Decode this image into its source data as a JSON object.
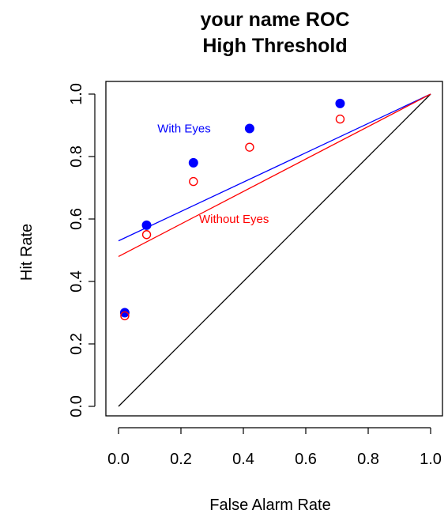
{
  "chart_data": {
    "type": "scatter",
    "title_lines": [
      "your name ROC",
      "High Threshold"
    ],
    "xlabel": "False Alarm Rate",
    "ylabel": "Hit Rate",
    "xlim": [
      0,
      1
    ],
    "ylim": [
      0,
      1
    ],
    "x_ticks": [
      "0.0",
      "0.2",
      "0.4",
      "0.6",
      "0.8",
      "1.0"
    ],
    "y_ticks": [
      "0.0",
      "0.2",
      "0.4",
      "0.6",
      "0.8",
      "1.0"
    ],
    "grid": false,
    "legend": "none",
    "series": [
      {
        "name": "With Eyes",
        "color": "#0000ff",
        "marker": "filled-circle",
        "points": [
          {
            "x": 0.02,
            "y": 0.3
          },
          {
            "x": 0.09,
            "y": 0.58
          },
          {
            "x": 0.24,
            "y": 0.78
          },
          {
            "x": 0.42,
            "y": 0.89
          },
          {
            "x": 0.71,
            "y": 0.97
          }
        ],
        "fit_line": {
          "x0": 0,
          "y0": 0.53,
          "x1": 1,
          "y1": 1
        }
      },
      {
        "name": "Without Eyes",
        "color": "#ff0000",
        "marker": "open-circle",
        "points": [
          {
            "x": 0.02,
            "y": 0.29
          },
          {
            "x": 0.09,
            "y": 0.55
          },
          {
            "x": 0.24,
            "y": 0.72
          },
          {
            "x": 0.42,
            "y": 0.83
          },
          {
            "x": 0.71,
            "y": 0.92
          }
        ],
        "fit_line": {
          "x0": 0,
          "y0": 0.48,
          "x1": 1,
          "y1": 1
        }
      }
    ],
    "reference_line": {
      "x0": 0,
      "y0": 0,
      "x1": 1,
      "y1": 1,
      "color": "#000000"
    },
    "annotations": [
      {
        "text": "With Eyes",
        "x": 0.21,
        "y": 0.89,
        "color": "#0000ff"
      },
      {
        "text": "Without Eyes",
        "x": 0.37,
        "y": 0.6,
        "color": "#ff0000"
      }
    ]
  }
}
